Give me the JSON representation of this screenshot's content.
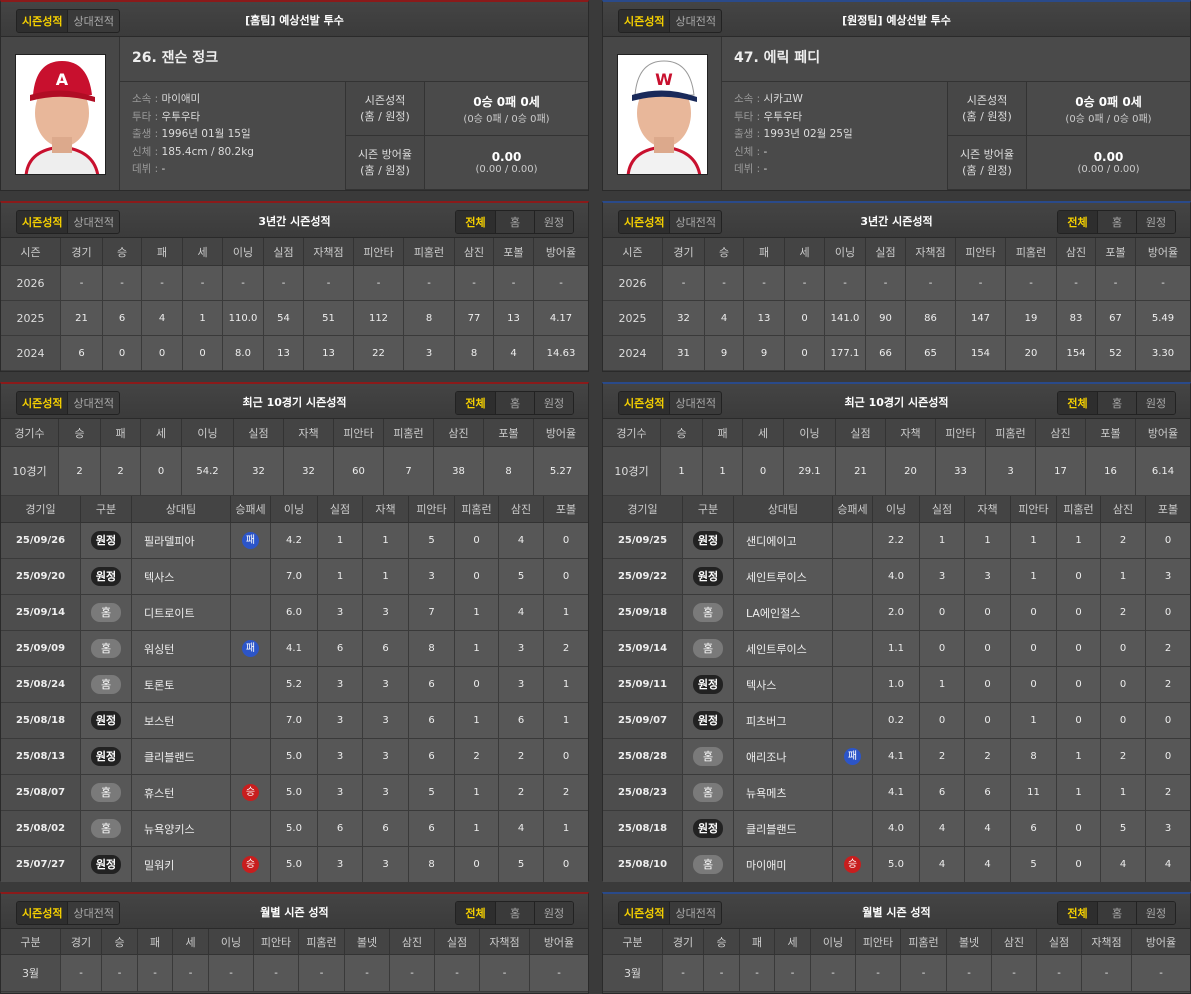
{
  "tabs": {
    "season": "시즌성적",
    "vs": "상대전적"
  },
  "toggle": {
    "all": "전체",
    "home": "홈",
    "away": "원정"
  },
  "labels": {
    "affiliation": "소속 : ",
    "throws": "투타 : ",
    "birth": "출생 : ",
    "body": "신체 : ",
    "debut": "데뷔 : ",
    "season_record": "시즌성적",
    "season_era": "시즌 방어율",
    "home_away": "(홈 / 원정)"
  },
  "titles": {
    "season3": "3년간 시즌성적",
    "recent": "최근 10경기 시즌성적",
    "monthly": "월별 시즌 성적"
  },
  "season3_headers": [
    "시즌",
    "경기",
    "승",
    "패",
    "세",
    "이닝",
    "실점",
    "자책점",
    "피안타",
    "피홈런",
    "삼진",
    "포볼",
    "방어율"
  ],
  "recent_headers": [
    "경기수",
    "승",
    "패",
    "세",
    "이닝",
    "실점",
    "자책",
    "피안타",
    "피홈런",
    "삼진",
    "포볼",
    "방어율"
  ],
  "game_headers": [
    "경기일",
    "구분",
    "상대팀",
    "승패세",
    "이닝",
    "실점",
    "자책",
    "피안타",
    "피홈런",
    "삼진",
    "포볼"
  ],
  "monthly_headers": [
    "구분",
    "경기",
    "승",
    "패",
    "세",
    "이닝",
    "피안타",
    "피홈런",
    "볼넷",
    "삼진",
    "실점",
    "자책점",
    "방어율"
  ],
  "colors": {
    "home_accent": "#8b1a1a",
    "away_accent": "#2a4a8a",
    "active_tab": "#f5d000",
    "win": "#c81e1e",
    "loss": "#2c55c8"
  },
  "pitchers": [
    {
      "side_title": "[홈팀] 예상선발 투수",
      "cap_color": "#c8102e",
      "profile": {
        "name": "26. 잰슨 정크",
        "affiliation": "마이애미",
        "throws": "우투우타",
        "birth": "1996년 01월 15일",
        "body": "185.4cm / 80.2kg",
        "debut": "-",
        "record": "0승 0패 0세",
        "record_split": "(0승 0패 / 0승 0패)",
        "era": "0.00",
        "era_split": "(0.00 / 0.00)"
      },
      "season3": [
        [
          "2026",
          "-",
          "-",
          "-",
          "-",
          "-",
          "-",
          "-",
          "-",
          "-",
          "-",
          "-",
          "-"
        ],
        [
          "2025",
          "21",
          "6",
          "4",
          "1",
          "110.0",
          "54",
          "51",
          "112",
          "8",
          "77",
          "13",
          "4.17"
        ],
        [
          "2024",
          "6",
          "0",
          "0",
          "0",
          "8.0",
          "13",
          "13",
          "22",
          "3",
          "8",
          "4",
          "14.63"
        ]
      ],
      "recent_summary": [
        "10경기",
        "2",
        "2",
        "0",
        "54.2",
        "32",
        "32",
        "60",
        "7",
        "38",
        "8",
        "5.27"
      ],
      "games": [
        {
          "date": "25/09/26",
          "type": "원정",
          "opp": "필라델피아",
          "result": "패",
          "ip": "4.2",
          "r": "1",
          "er": "1",
          "h": "5",
          "hr": "0",
          "so": "4",
          "bb": "0"
        },
        {
          "date": "25/09/20",
          "type": "원정",
          "opp": "텍사스",
          "result": "",
          "ip": "7.0",
          "r": "1",
          "er": "1",
          "h": "3",
          "hr": "0",
          "so": "5",
          "bb": "0"
        },
        {
          "date": "25/09/14",
          "type": "홈",
          "opp": "디트로이트",
          "result": "",
          "ip": "6.0",
          "r": "3",
          "er": "3",
          "h": "7",
          "hr": "1",
          "so": "4",
          "bb": "1"
        },
        {
          "date": "25/09/09",
          "type": "홈",
          "opp": "워싱턴",
          "result": "패",
          "ip": "4.1",
          "r": "6",
          "er": "6",
          "h": "8",
          "hr": "1",
          "so": "3",
          "bb": "2"
        },
        {
          "date": "25/08/24",
          "type": "홈",
          "opp": "토론토",
          "result": "",
          "ip": "5.2",
          "r": "3",
          "er": "3",
          "h": "6",
          "hr": "0",
          "so": "3",
          "bb": "1"
        },
        {
          "date": "25/08/18",
          "type": "원정",
          "opp": "보스턴",
          "result": "",
          "ip": "7.0",
          "r": "3",
          "er": "3",
          "h": "6",
          "hr": "1",
          "so": "6",
          "bb": "1"
        },
        {
          "date": "25/08/13",
          "type": "원정",
          "opp": "클리블랜드",
          "result": "",
          "ip": "5.0",
          "r": "3",
          "er": "3",
          "h": "6",
          "hr": "2",
          "so": "2",
          "bb": "0"
        },
        {
          "date": "25/08/07",
          "type": "홈",
          "opp": "휴스턴",
          "result": "승",
          "ip": "5.0",
          "r": "3",
          "er": "3",
          "h": "5",
          "hr": "1",
          "so": "2",
          "bb": "2"
        },
        {
          "date": "25/08/02",
          "type": "홈",
          "opp": "뉴욕양키스",
          "result": "",
          "ip": "5.0",
          "r": "6",
          "er": "6",
          "h": "6",
          "hr": "1",
          "so": "4",
          "bb": "1"
        },
        {
          "date": "25/07/27",
          "type": "원정",
          "opp": "밀워키",
          "result": "승",
          "ip": "5.0",
          "r": "3",
          "er": "3",
          "h": "8",
          "hr": "0",
          "so": "5",
          "bb": "0"
        }
      ],
      "monthly": [
        [
          "3월",
          "-",
          "-",
          "-",
          "-",
          "-",
          "-",
          "-",
          "-",
          "-",
          "-",
          "-",
          "-"
        ]
      ]
    },
    {
      "side_title": "[원정팀] 예상선발 투수",
      "cap_color": "#ffffff",
      "profile": {
        "name": "47. 에릭 페디",
        "affiliation": "시카고W",
        "throws": "우투우타",
        "birth": "1993년 02월 25일",
        "body": "-",
        "debut": "-",
        "record": "0승 0패 0세",
        "record_split": "(0승 0패 / 0승 0패)",
        "era": "0.00",
        "era_split": "(0.00 / 0.00)"
      },
      "season3": [
        [
          "2026",
          "-",
          "-",
          "-",
          "-",
          "-",
          "-",
          "-",
          "-",
          "-",
          "-",
          "-",
          "-"
        ],
        [
          "2025",
          "32",
          "4",
          "13",
          "0",
          "141.0",
          "90",
          "86",
          "147",
          "19",
          "83",
          "67",
          "5.49"
        ],
        [
          "2024",
          "31",
          "9",
          "9",
          "0",
          "177.1",
          "66",
          "65",
          "154",
          "20",
          "154",
          "52",
          "3.30"
        ]
      ],
      "recent_summary": [
        "10경기",
        "1",
        "1",
        "0",
        "29.1",
        "21",
        "20",
        "33",
        "3",
        "17",
        "16",
        "6.14"
      ],
      "games": [
        {
          "date": "25/09/25",
          "type": "원정",
          "opp": "샌디에이고",
          "result": "",
          "ip": "2.2",
          "r": "1",
          "er": "1",
          "h": "1",
          "hr": "1",
          "so": "2",
          "bb": "0"
        },
        {
          "date": "25/09/22",
          "type": "원정",
          "opp": "세인트루이스",
          "result": "",
          "ip": "4.0",
          "r": "3",
          "er": "3",
          "h": "1",
          "hr": "0",
          "so": "1",
          "bb": "3"
        },
        {
          "date": "25/09/18",
          "type": "홈",
          "opp": "LA에인절스",
          "result": "",
          "ip": "2.0",
          "r": "0",
          "er": "0",
          "h": "0",
          "hr": "0",
          "so": "2",
          "bb": "0"
        },
        {
          "date": "25/09/14",
          "type": "홈",
          "opp": "세인트루이스",
          "result": "",
          "ip": "1.1",
          "r": "0",
          "er": "0",
          "h": "0",
          "hr": "0",
          "so": "0",
          "bb": "2"
        },
        {
          "date": "25/09/11",
          "type": "원정",
          "opp": "텍사스",
          "result": "",
          "ip": "1.0",
          "r": "1",
          "er": "0",
          "h": "0",
          "hr": "0",
          "so": "0",
          "bb": "2"
        },
        {
          "date": "25/09/07",
          "type": "원정",
          "opp": "피츠버그",
          "result": "",
          "ip": "0.2",
          "r": "0",
          "er": "0",
          "h": "1",
          "hr": "0",
          "so": "0",
          "bb": "0"
        },
        {
          "date": "25/08/28",
          "type": "홈",
          "opp": "애리조나",
          "result": "패",
          "ip": "4.1",
          "r": "2",
          "er": "2",
          "h": "8",
          "hr": "1",
          "so": "2",
          "bb": "0"
        },
        {
          "date": "25/08/23",
          "type": "홈",
          "opp": "뉴욕메츠",
          "result": "",
          "ip": "4.1",
          "r": "6",
          "er": "6",
          "h": "11",
          "hr": "1",
          "so": "1",
          "bb": "2"
        },
        {
          "date": "25/08/18",
          "type": "원정",
          "opp": "클리블랜드",
          "result": "",
          "ip": "4.0",
          "r": "4",
          "er": "4",
          "h": "6",
          "hr": "0",
          "so": "5",
          "bb": "3"
        },
        {
          "date": "25/08/10",
          "type": "홈",
          "opp": "마이애미",
          "result": "승",
          "ip": "5.0",
          "r": "4",
          "er": "4",
          "h": "5",
          "hr": "0",
          "so": "4",
          "bb": "4"
        }
      ],
      "monthly": [
        [
          "3월",
          "-",
          "-",
          "-",
          "-",
          "-",
          "-",
          "-",
          "-",
          "-",
          "-",
          "-",
          "-"
        ]
      ]
    }
  ]
}
